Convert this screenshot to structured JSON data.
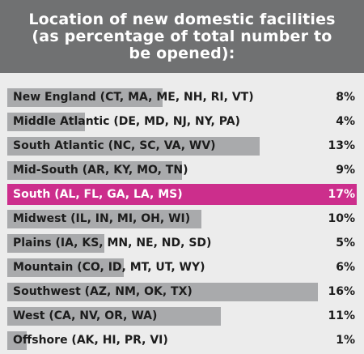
{
  "title_lines": [
    "Location of new domestic facilities",
    "(as percentage of total number to",
    "be opened):"
  ],
  "colors": {
    "header_bg": "#707172",
    "panel_bg": "#ececec",
    "bar": "#a9aaac",
    "highlight": "#cc2e8c"
  },
  "chart_data": {
    "type": "bar",
    "orientation": "horizontal",
    "title": "Location of new domestic facilities (as percentage of total number to be opened):",
    "unit": "%",
    "xlim": [
      0,
      18
    ],
    "highlighted": "South",
    "rows": [
      {
        "label": "New England  (CT, MA, ME, NH, RI, VT)",
        "value": 8,
        "display": "8%"
      },
      {
        "label": "Middle Atlantic  (DE, MD, NJ, NY, PA)",
        "value": 4,
        "display": "4%"
      },
      {
        "label": "South Atlantic  (NC, SC, VA, WV)",
        "value": 13,
        "display": "13%"
      },
      {
        "label": "Mid-South  (AR, KY, MO, TN)",
        "value": 9,
        "display": "9%"
      },
      {
        "label": "South   (AL, FL, GA, LA, MS)",
        "value": 17,
        "display": "17%",
        "highlight": true
      },
      {
        "label": "Midwest  (IL, IN, MI, OH, WI)",
        "value": 10,
        "display": "10%"
      },
      {
        "label": "Plains  (IA, KS, MN, NE, ND, SD)",
        "value": 5,
        "display": "5%"
      },
      {
        "label": "Mountain  (CO, ID, MT, UT, WY)",
        "value": 6,
        "display": "6%"
      },
      {
        "label": "Southwest  (AZ, NM, OK, TX)",
        "value": 16,
        "display": "16%"
      },
      {
        "label": "West  (CA, NV, OR, WA)",
        "value": 11,
        "display": "11%"
      },
      {
        "label": "Offshore  (AK, HI, PR, VI)",
        "value": 1,
        "display": "1%"
      }
    ]
  }
}
